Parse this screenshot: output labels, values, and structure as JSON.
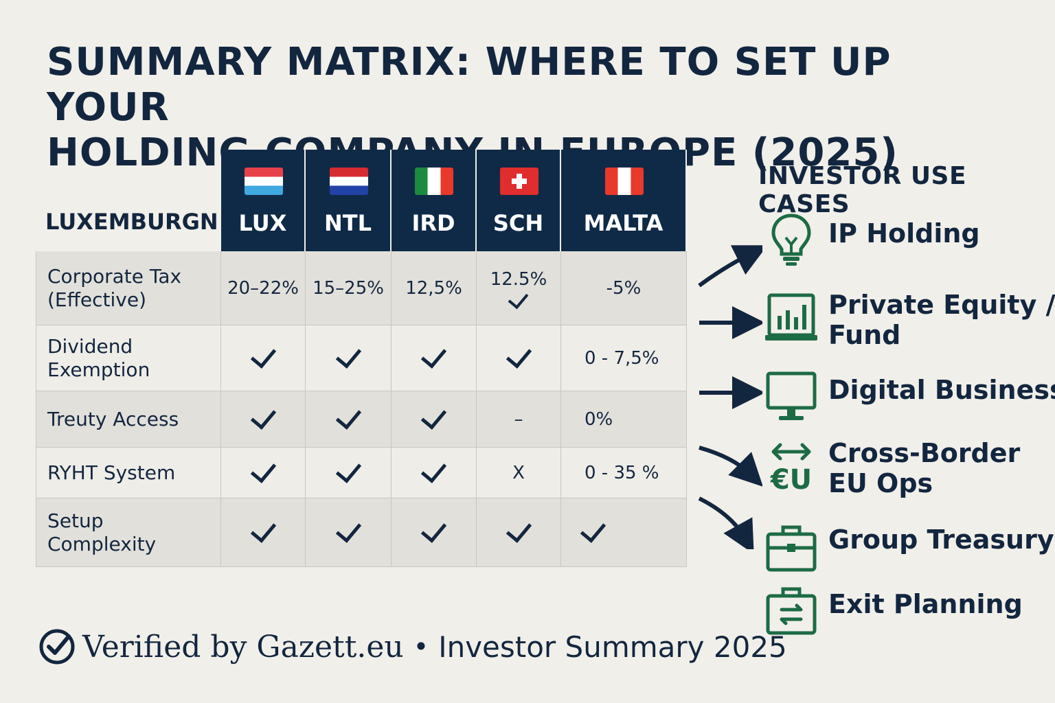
{
  "title": {
    "line1": "SUMMARY MATRIX: WHERE TO SET UP YOUR",
    "line2": "HOLDING COMPANY IN EUROPE (2025)"
  },
  "matrix": {
    "header_label": "LUXEMBURGN",
    "countries": [
      {
        "code": "LUX",
        "flag_colors": [
          "#e8414a",
          "#ffffff",
          "#3fa9e0"
        ],
        "flag_layout": "horizontal"
      },
      {
        "code": "NTL",
        "flag_colors": [
          "#d62b2f",
          "#ffffff",
          "#2142a6"
        ],
        "flag_layout": "horizontal"
      },
      {
        "code": "IRD",
        "flag_colors": [
          "#1d8a3f",
          "#ffffff",
          "#e8392b"
        ],
        "flag_layout": "vertical"
      },
      {
        "code": "SCH",
        "flag_colors": [
          "#e02d2d",
          "#ffffff"
        ],
        "flag_layout": "cross"
      },
      {
        "code": "MALTA",
        "flag_colors": [
          "#e8392b",
          "#ffffff",
          "#e8392b"
        ],
        "flag_layout": "vertical"
      }
    ],
    "rows": [
      {
        "label_lines": [
          "Corporate Tax",
          "(Effective)"
        ],
        "values": [
          "20–22%",
          "15–25%",
          "12,5%",
          "12.5%|check",
          "-5%"
        ]
      },
      {
        "label_lines": [
          "Dividend",
          "Exemption"
        ],
        "values": [
          "check",
          "check",
          "check",
          "check",
          "0 - 7,5%"
        ]
      },
      {
        "label_lines": [
          "Treuty Access"
        ],
        "values": [
          "check",
          "check",
          "check",
          "–",
          "0%"
        ]
      },
      {
        "label_lines": [
          "RYHT System"
        ],
        "values": [
          "check",
          "check",
          "check",
          "X",
          "0 - 35 %"
        ]
      },
      {
        "label_lines": [
          "Setup",
          "Complexity"
        ],
        "values": [
          "check",
          "check",
          "check",
          "check",
          "check"
        ]
      }
    ]
  },
  "use_cases": {
    "title": "INVESTOR USE CASES",
    "items": [
      {
        "icon": "lightbulb-icon",
        "lines": [
          "IP Holding"
        ]
      },
      {
        "icon": "bar-chart-icon",
        "lines": [
          "Private Equity /",
          "Fund"
        ]
      },
      {
        "icon": "monitor-icon",
        "lines": [
          "Digital Business"
        ]
      },
      {
        "icon": "eu-arrows-icon",
        "lines": [
          "Cross-Border",
          "EU Ops"
        ],
        "icon_text": "€U"
      },
      {
        "icon": "briefcase-icon",
        "lines": [
          "Group Treasury"
        ]
      },
      {
        "icon": "briefcase-exchange-icon",
        "lines": [
          "Exit Planning"
        ]
      }
    ],
    "icon_color": "#1d6b45",
    "arrow_color": "#13263f"
  },
  "footer": {
    "text": "Verified by Gazett.eu",
    "separator": "•",
    "subtext": "Investor Summary 2025"
  }
}
